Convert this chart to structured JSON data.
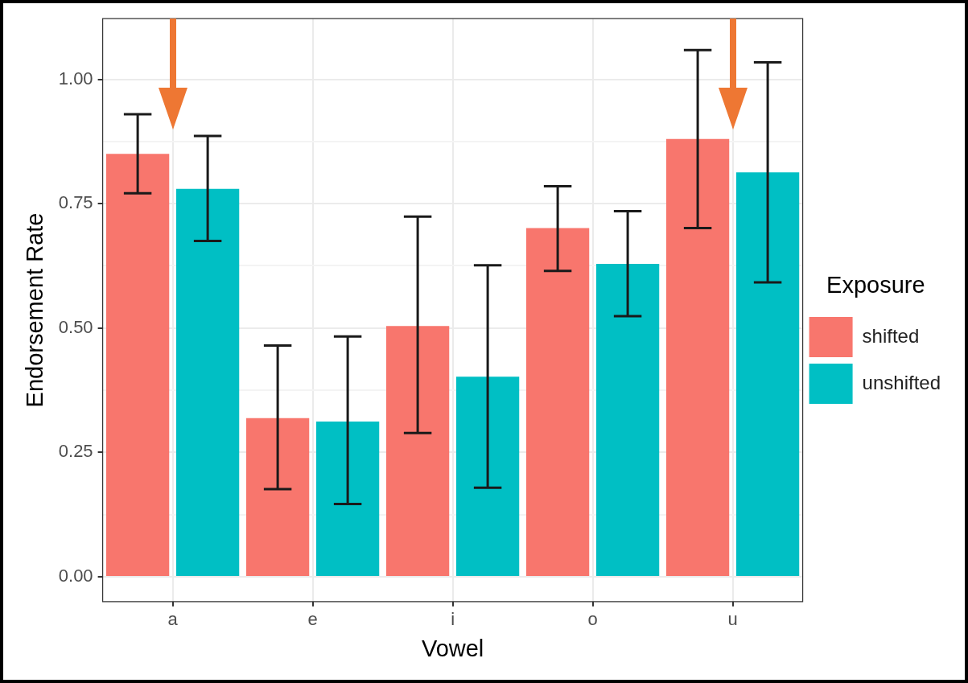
{
  "chart_data": {
    "type": "bar",
    "xlabel": "Vowel",
    "ylabel": "Endorsement Rate",
    "legend_title": "Exposure",
    "legend": "right",
    "grid": true,
    "categories": [
      "a",
      "e",
      "i",
      "o",
      "u"
    ],
    "series": [
      {
        "name": "shifted",
        "color": "#f8766d",
        "values": [
          0.85,
          0.319,
          0.504,
          0.701,
          0.88
        ],
        "errors": [
          [
            0.771,
            0.93
          ],
          [
            0.176,
            0.465
          ],
          [
            0.289,
            0.724
          ],
          [
            0.615,
            0.785
          ],
          [
            0.701,
            1.059
          ]
        ]
      },
      {
        "name": "unshifted",
        "color": "#00bfc4",
        "values": [
          0.78,
          0.312,
          0.402,
          0.629,
          0.813
        ],
        "errors": [
          [
            0.675,
            0.886
          ],
          [
            0.146,
            0.483
          ],
          [
            0.179,
            0.626
          ],
          [
            0.524,
            0.735
          ],
          [
            0.592,
            1.034
          ]
        ]
      }
    ],
    "ylim": [
      -0.05,
      1.122
    ],
    "yticks": [
      {
        "value": 0,
        "label": "0.00"
      },
      {
        "value": 0.125,
        "label": null
      },
      {
        "value": 0.25,
        "label": "0.25"
      },
      {
        "value": 0.375,
        "label": null
      },
      {
        "value": 0.5,
        "label": "0.50"
      },
      {
        "value": 0.625,
        "label": null
      },
      {
        "value": 0.75,
        "label": "0.75"
      },
      {
        "value": 0.875,
        "label": null
      },
      {
        "value": 1,
        "label": "1.00"
      }
    ]
  }
}
